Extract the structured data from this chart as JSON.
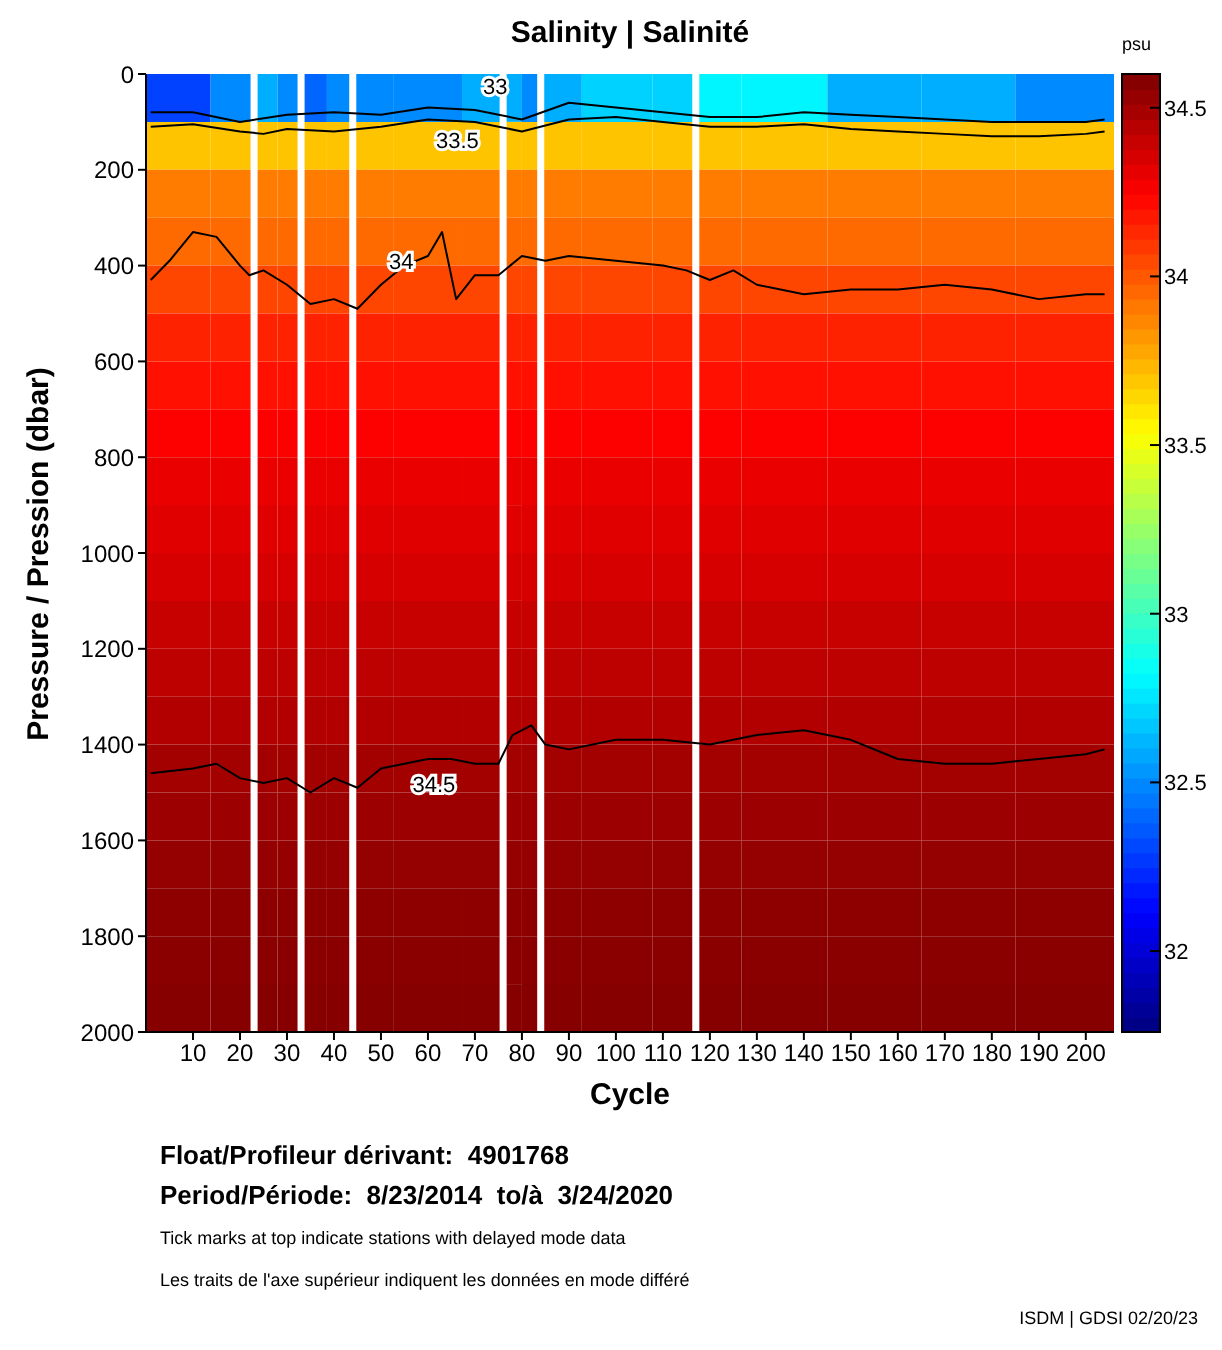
{
  "chart_data": {
    "type": "heatmap",
    "title": "Salinity | Salinité",
    "xlabel": "Cycle",
    "ylabel": "Pressure / Pression (dbar)",
    "clabel": "psu",
    "x": [
      6,
      21.5,
      23,
      24.5,
      31.5,
      33,
      34.5,
      42.5,
      44,
      45.5,
      60,
      74.5,
      76,
      77.5,
      82.5,
      84,
      85.5,
      100,
      115.5,
      117,
      118.5,
      135,
      155,
      175,
      195
    ],
    "xlim": [
      0,
      206
    ],
    "xticks": [
      10,
      20,
      30,
      40,
      50,
      60,
      70,
      80,
      90,
      100,
      110,
      120,
      130,
      140,
      150,
      160,
      170,
      180,
      190,
      200
    ],
    "ylim": [
      2000,
      0
    ],
    "yticks": [
      0,
      200,
      400,
      600,
      800,
      1000,
      1200,
      1400,
      1600,
      1800,
      2000
    ],
    "clim": [
      31.76,
      34.6
    ],
    "cticks": [
      32,
      32.5,
      33,
      33.5,
      34,
      34.5
    ],
    "cells": [
      [
        32.3,
        32.5,
        null,
        32.6,
        32.5,
        null,
        32.4,
        32.5,
        null,
        32.5,
        32.5,
        32.6,
        null,
        32.6,
        32.5,
        null,
        32.6,
        32.7,
        32.7,
        null,
        32.8,
        32.8,
        32.6,
        32.6,
        32.5
      ],
      [
        33.7,
        33.7,
        null,
        33.7,
        33.7,
        null,
        33.7,
        33.7,
        null,
        33.7,
        33.7,
        33.7,
        null,
        33.7,
        33.7,
        null,
        33.7,
        33.7,
        33.7,
        null,
        33.7,
        33.7,
        33.7,
        33.7,
        33.7
      ],
      [
        33.9,
        33.9,
        null,
        33.9,
        33.9,
        null,
        33.9,
        33.9,
        null,
        33.9,
        33.9,
        33.9,
        null,
        33.9,
        33.9,
        null,
        33.9,
        33.9,
        33.9,
        null,
        33.9,
        33.9,
        33.9,
        33.9,
        33.9
      ],
      [
        33.95,
        33.95,
        null,
        33.95,
        33.95,
        null,
        33.95,
        33.95,
        null,
        33.95,
        33.95,
        33.95,
        null,
        33.95,
        33.95,
        null,
        33.95,
        33.95,
        33.95,
        null,
        33.95,
        33.95,
        33.95,
        33.95,
        33.95
      ],
      [
        34.05,
        34.05,
        null,
        34.05,
        34.05,
        null,
        34.05,
        34.05,
        null,
        34.05,
        34.05,
        34.05,
        null,
        34.05,
        34.05,
        null,
        34.05,
        34.05,
        34.05,
        null,
        34.05,
        34.05,
        34.05,
        34.05,
        34.05
      ],
      [
        34.15,
        34.15,
        null,
        34.15,
        34.15,
        null,
        34.15,
        34.15,
        null,
        34.15,
        34.15,
        34.15,
        null,
        34.15,
        34.15,
        null,
        34.15,
        34.15,
        34.15,
        null,
        34.15,
        34.15,
        34.15,
        34.15,
        34.15
      ],
      [
        34.2,
        34.2,
        null,
        34.2,
        34.2,
        null,
        34.2,
        34.2,
        null,
        34.2,
        34.2,
        34.2,
        null,
        34.2,
        34.2,
        null,
        34.2,
        34.2,
        34.2,
        null,
        34.2,
        34.2,
        34.2,
        34.2,
        34.2
      ],
      [
        34.25,
        34.25,
        null,
        34.25,
        34.25,
        null,
        34.25,
        34.25,
        null,
        34.25,
        34.25,
        34.25,
        null,
        34.25,
        34.25,
        null,
        34.25,
        34.25,
        34.25,
        null,
        34.25,
        34.25,
        34.25,
        34.25,
        34.25
      ],
      [
        34.3,
        34.3,
        null,
        34.3,
        34.3,
        null,
        34.3,
        34.3,
        null,
        34.3,
        34.3,
        34.3,
        null,
        34.3,
        34.3,
        null,
        34.3,
        34.3,
        34.3,
        null,
        34.3,
        34.3,
        34.3,
        34.3,
        34.3
      ],
      [
        34.33,
        34.33,
        null,
        34.33,
        34.33,
        null,
        34.33,
        34.33,
        null,
        34.33,
        34.33,
        34.33,
        null,
        34.33,
        34.33,
        null,
        34.33,
        34.33,
        34.33,
        null,
        34.33,
        34.33,
        34.33,
        34.33,
        34.33
      ],
      [
        34.36,
        34.36,
        null,
        34.36,
        34.36,
        null,
        34.36,
        34.36,
        null,
        34.36,
        34.36,
        34.36,
        null,
        34.36,
        34.36,
        null,
        34.36,
        34.36,
        34.36,
        null,
        34.36,
        34.36,
        34.36,
        34.36,
        34.36
      ],
      [
        34.4,
        34.4,
        null,
        34.4,
        34.4,
        null,
        34.4,
        34.4,
        null,
        34.4,
        34.4,
        34.4,
        null,
        34.4,
        34.4,
        null,
        34.4,
        34.4,
        34.4,
        null,
        34.4,
        34.4,
        34.4,
        34.4,
        34.4
      ],
      [
        34.43,
        34.43,
        null,
        34.43,
        34.43,
        null,
        34.43,
        34.43,
        null,
        34.43,
        34.43,
        34.43,
        null,
        34.43,
        34.43,
        null,
        34.43,
        34.43,
        34.43,
        null,
        34.43,
        34.43,
        34.43,
        34.43,
        34.43
      ],
      [
        34.46,
        34.46,
        null,
        34.46,
        34.46,
        null,
        34.46,
        34.46,
        null,
        34.46,
        34.46,
        34.46,
        null,
        34.46,
        34.46,
        null,
        34.46,
        34.46,
        34.46,
        null,
        34.46,
        34.46,
        34.46,
        34.46,
        34.46
      ],
      [
        34.5,
        34.5,
        null,
        34.5,
        34.5,
        null,
        34.5,
        34.5,
        null,
        34.5,
        34.5,
        34.5,
        null,
        34.5,
        34.5,
        null,
        34.5,
        34.5,
        34.5,
        null,
        34.5,
        34.5,
        34.5,
        34.5,
        34.5
      ],
      [
        34.52,
        34.52,
        null,
        34.52,
        34.52,
        null,
        34.52,
        34.52,
        null,
        34.52,
        34.52,
        34.52,
        null,
        34.52,
        34.52,
        null,
        34.52,
        34.52,
        34.52,
        null,
        34.52,
        34.52,
        34.52,
        34.52,
        34.52
      ],
      [
        34.54,
        34.54,
        null,
        34.54,
        34.54,
        null,
        34.54,
        34.54,
        null,
        34.54,
        34.54,
        34.54,
        null,
        34.54,
        34.54,
        null,
        34.54,
        34.54,
        34.54,
        null,
        34.54,
        34.54,
        34.54,
        34.54,
        34.54
      ],
      [
        34.56,
        34.56,
        null,
        34.56,
        34.56,
        null,
        34.56,
        34.56,
        null,
        34.56,
        34.56,
        34.56,
        null,
        34.56,
        34.56,
        null,
        34.56,
        34.56,
        34.56,
        null,
        34.56,
        34.56,
        34.56,
        34.56,
        34.56
      ],
      [
        34.57,
        34.57,
        null,
        34.57,
        34.57,
        null,
        34.57,
        34.57,
        null,
        34.57,
        34.57,
        34.57,
        null,
        34.57,
        34.57,
        null,
        34.57,
        34.57,
        34.57,
        null,
        34.57,
        34.57,
        34.57,
        34.57,
        34.57
      ],
      [
        34.58,
        34.58,
        null,
        34.58,
        34.58,
        null,
        34.58,
        34.58,
        null,
        34.58,
        34.58,
        34.58,
        null,
        34.58,
        34.58,
        null,
        34.58,
        34.58,
        34.58,
        null,
        34.58,
        34.58,
        34.58,
        34.58,
        34.58
      ]
    ],
    "series": [
      {
        "type": "line",
        "name": "33",
        "color": "#000000",
        "x": [
          1,
          10,
          20,
          30,
          40,
          50,
          60,
          70,
          80,
          90,
          100,
          110,
          120,
          130,
          140,
          150,
          160,
          170,
          180,
          190,
          200,
          204
        ],
        "values": [
          80,
          80,
          100,
          85,
          80,
          85,
          70,
          75,
          95,
          60,
          70,
          80,
          90,
          90,
          80,
          85,
          90,
          95,
          100,
          100,
          100,
          95
        ]
      },
      {
        "type": "line",
        "name": "33.5",
        "color": "#000000",
        "x": [
          1,
          10,
          20,
          25,
          30,
          40,
          50,
          60,
          70,
          80,
          90,
          100,
          110,
          120,
          130,
          140,
          150,
          160,
          170,
          180,
          190,
          200,
          204
        ],
        "values": [
          110,
          105,
          120,
          125,
          115,
          120,
          110,
          95,
          100,
          120,
          95,
          90,
          100,
          110,
          110,
          105,
          115,
          120,
          125,
          130,
          130,
          125,
          120
        ]
      },
      {
        "type": "line",
        "name": "34",
        "color": "#000000",
        "x": [
          1,
          5,
          10,
          15,
          20,
          22,
          25,
          30,
          35,
          40,
          45,
          50,
          55,
          60,
          63,
          66,
          70,
          75,
          80,
          85,
          90,
          100,
          110,
          115,
          120,
          125,
          130,
          140,
          150,
          160,
          170,
          180,
          190,
          200,
          204
        ],
        "values": [
          430,
          390,
          330,
          340,
          400,
          420,
          410,
          440,
          480,
          470,
          490,
          440,
          400,
          380,
          330,
          470,
          420,
          420,
          380,
          390,
          380,
          390,
          400,
          410,
          430,
          410,
          440,
          460,
          450,
          450,
          440,
          450,
          470,
          460,
          460
        ]
      },
      {
        "type": "line",
        "name": "34.5",
        "color": "#000000",
        "x": [
          1,
          10,
          15,
          20,
          25,
          30,
          35,
          40,
          45,
          50,
          55,
          60,
          65,
          70,
          75,
          78,
          82,
          85,
          90,
          100,
          110,
          120,
          130,
          140,
          150,
          160,
          170,
          180,
          190,
          200,
          204
        ],
        "values": [
          1460,
          1450,
          1440,
          1470,
          1480,
          1470,
          1500,
          1470,
          1490,
          1450,
          1440,
          1430,
          1430,
          1440,
          1440,
          1380,
          1360,
          1400,
          1410,
          1390,
          1390,
          1400,
          1380,
          1370,
          1390,
          1430,
          1440,
          1440,
          1430,
          1420,
          1410
        ]
      }
    ],
    "annotations": [
      "Float/Profileur dérivant:  4901768",
      "Period/Période:  8/23/2014  to/à  3/24/2020",
      "Tick marks at top indicate stations with delayed mode data",
      "Les traits de l'axe supérieur indiquent les données en mode différé",
      "ISDM | GDSI 02/20/23"
    ]
  }
}
